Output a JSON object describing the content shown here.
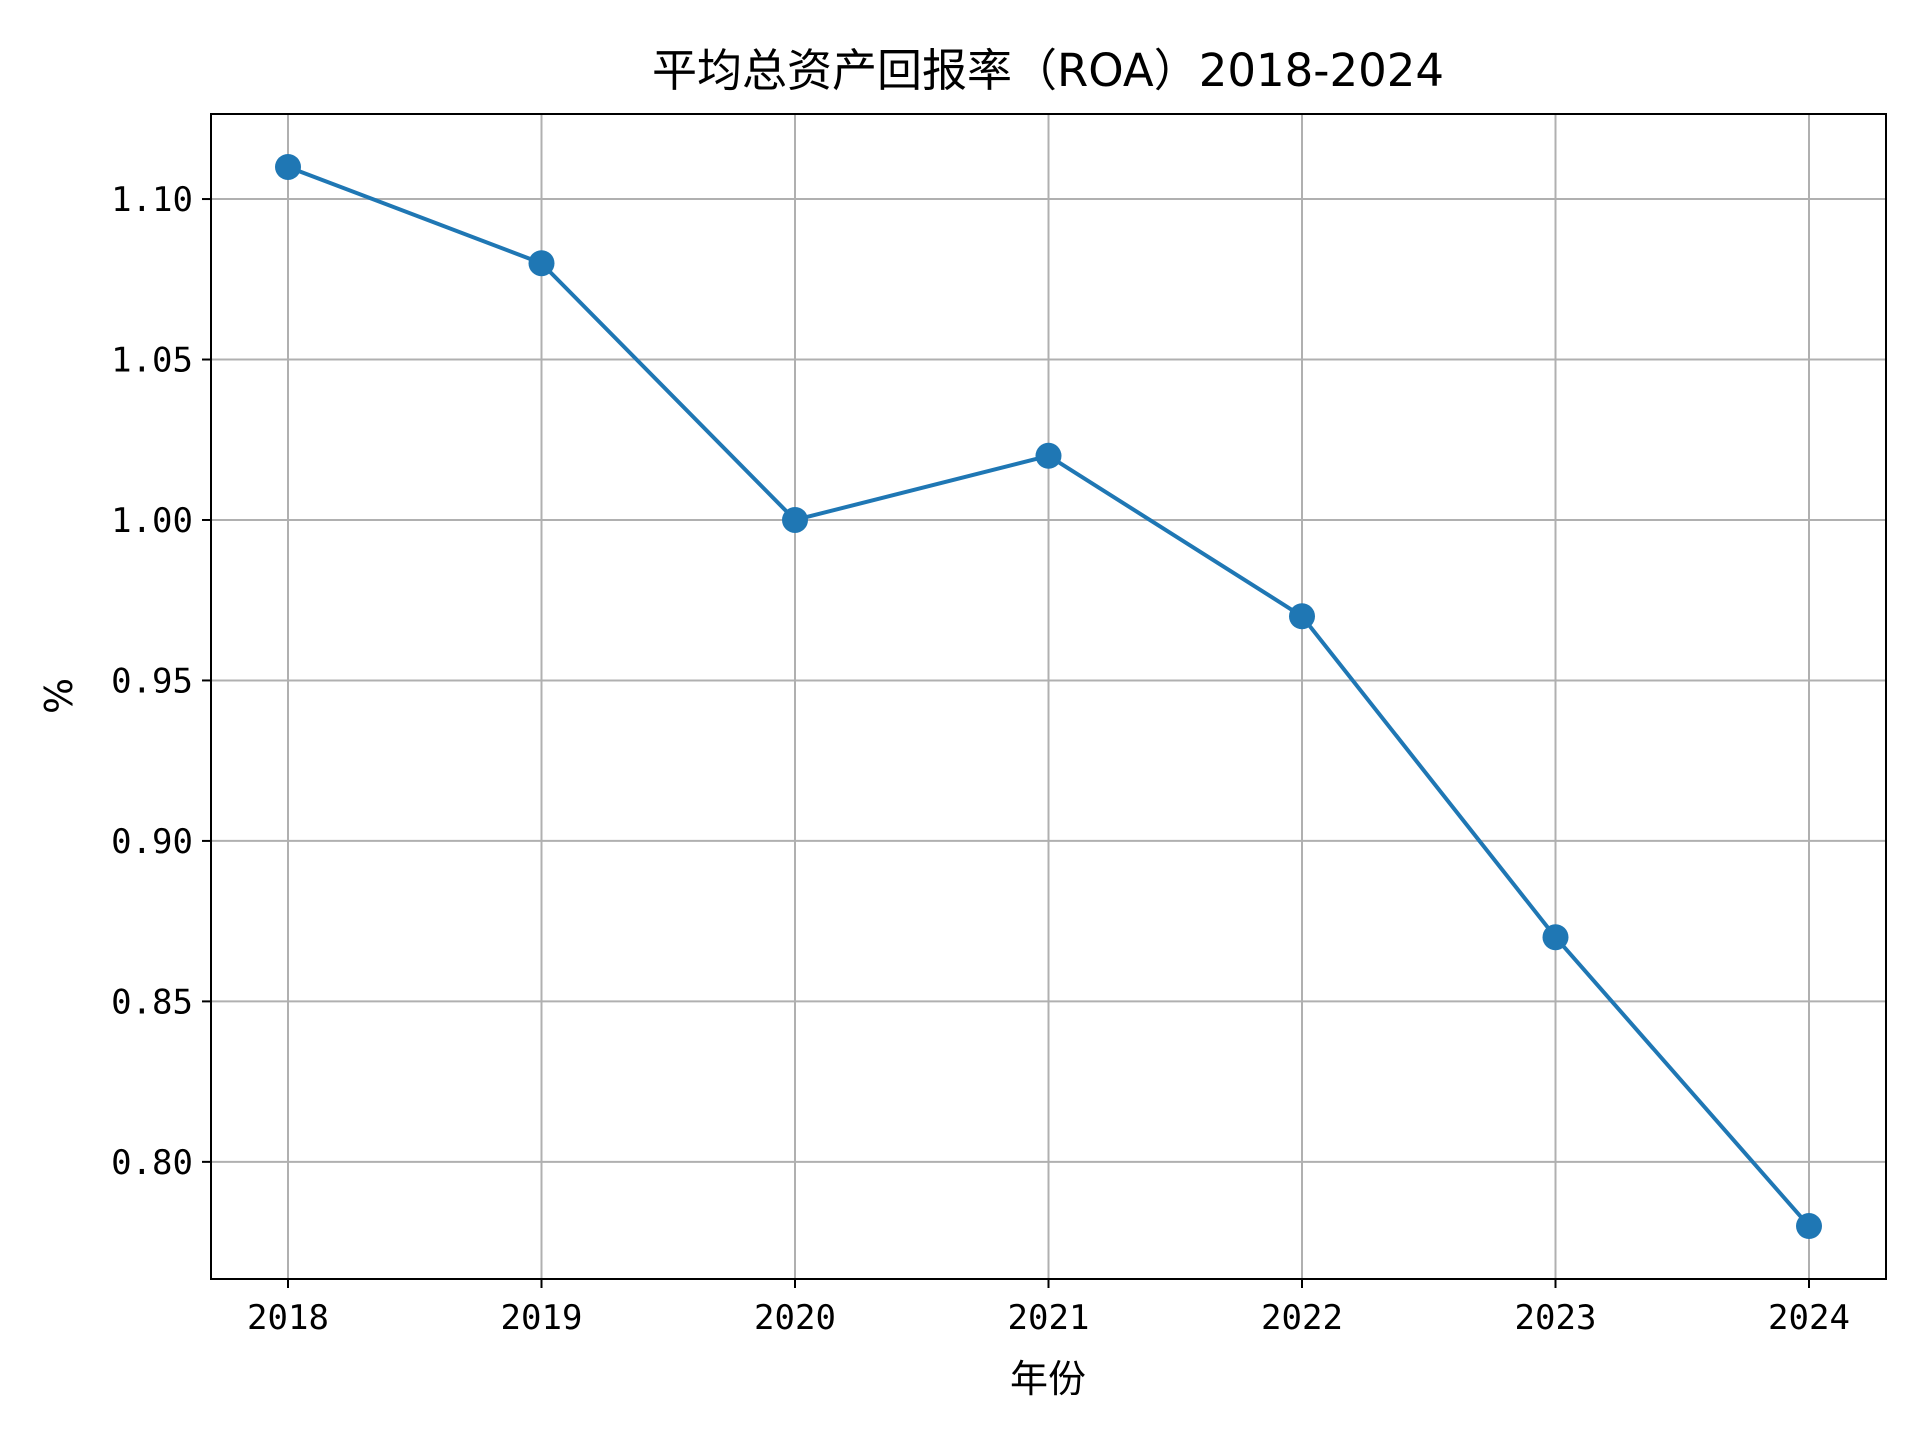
{
  "chart_data": {
    "type": "line",
    "title": "平均总资产回报率（ROA）2018-2024",
    "xlabel": "年份",
    "ylabel": "%",
    "categories": [
      "2018",
      "2019",
      "2020",
      "2021",
      "2022",
      "2023",
      "2024"
    ],
    "series": [
      {
        "values": [
          1.11,
          1.08,
          1.0,
          1.02,
          0.97,
          0.87,
          0.78
        ],
        "color": "#1f77b4",
        "marker": "circle"
      }
    ],
    "yticks": [
      "0.80",
      "0.85",
      "0.90",
      "0.95",
      "1.00",
      "1.05",
      "1.10"
    ],
    "ylim": [
      0.7635,
      1.1265
    ],
    "grid": true,
    "legend": "none"
  }
}
